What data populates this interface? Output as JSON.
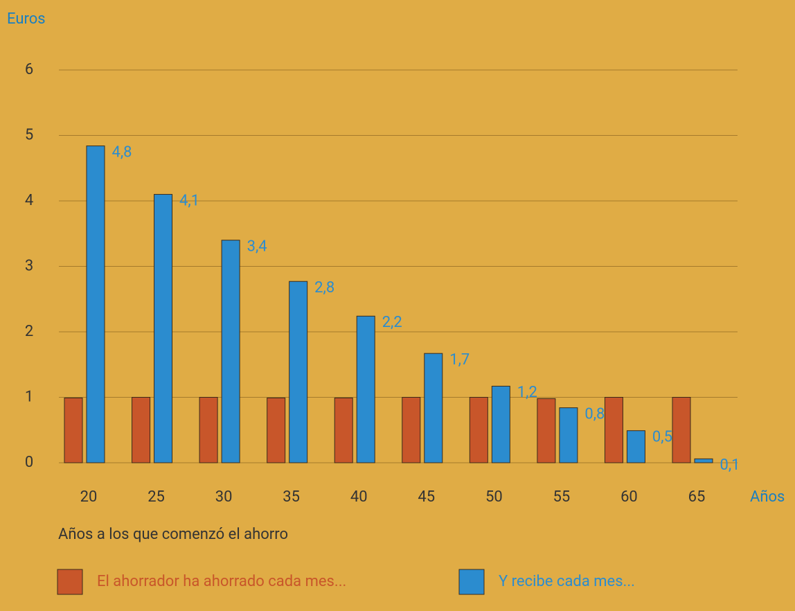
{
  "chart_data": {
    "type": "bar",
    "y_label": "Euros",
    "x_label": "Años",
    "subtitle": "Años a los que comenzó el ahorro",
    "categories": [
      "20",
      "25",
      "30",
      "35",
      "40",
      "45",
      "50",
      "55",
      "60",
      "65"
    ],
    "series": [
      {
        "name": "El ahorrador ha ahorrado cada mes...",
        "color": "#c8562a",
        "values": [
          0.99,
          1,
          1,
          0.99,
          0.99,
          1,
          1,
          0.98,
          1,
          1
        ]
      },
      {
        "name": "Y recibe cada mes...",
        "color": "#2b8ccf",
        "values": [
          4.84,
          4.1,
          3.4,
          2.77,
          2.24,
          1.67,
          1.17,
          0.84,
          0.49,
          0.06
        ],
        "value_labels": [
          "4,8",
          "4,1",
          "3,4",
          "2,8",
          "2,2",
          "1,7",
          "1,2",
          "0,8",
          "0,5",
          "0,1"
        ]
      }
    ],
    "ylim": [
      0,
      6
    ],
    "yticks": [
      0,
      1,
      2,
      3,
      4,
      5,
      6
    ],
    "grid": true
  }
}
